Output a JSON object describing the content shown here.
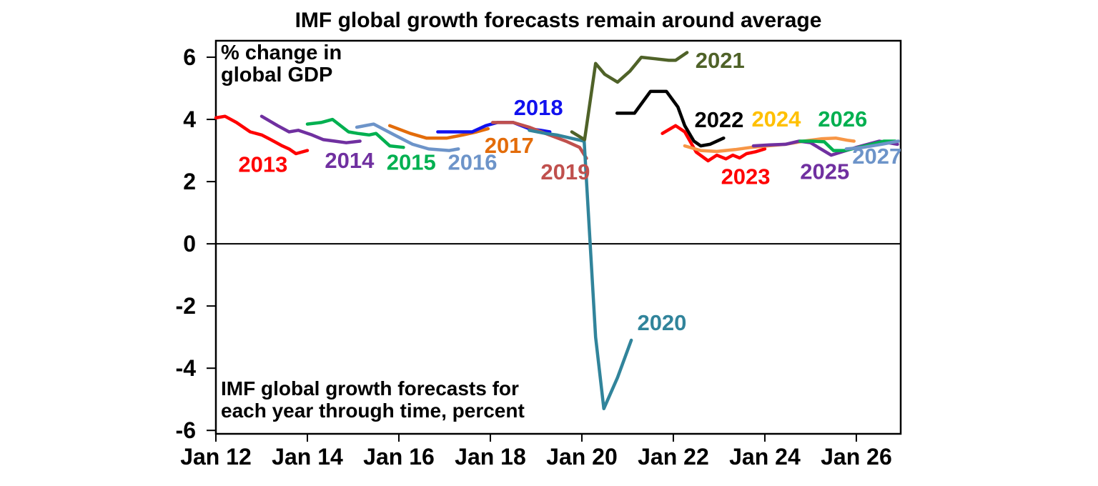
{
  "page": {
    "background": "#ffffff",
    "axis_color": "#000000"
  },
  "chart_data": {
    "type": "line",
    "title": "IMF global growth forecasts remain around average",
    "unit_note": [
      "% change in",
      "global GDP"
    ],
    "footnote": [
      "IMF global growth forecasts for",
      "each year through time, percent"
    ],
    "x_axis": {
      "range": [
        2012,
        2026.97
      ],
      "grid": false,
      "ticks": [
        {
          "t": 2012,
          "label": "Jan 12"
        },
        {
          "t": 2014,
          "label": "Jan 14"
        },
        {
          "t": 2016,
          "label": "Jan 16"
        },
        {
          "t": 2018,
          "label": "Jan 18"
        },
        {
          "t": 2020,
          "label": "Jan 20"
        },
        {
          "t": 2022,
          "label": "Jan 22"
        },
        {
          "t": 2024,
          "label": "Jan 24"
        },
        {
          "t": 2026,
          "label": "Jan 26"
        }
      ]
    },
    "y_axis": {
      "range": [
        -6.11,
        6.53
      ],
      "grid": false,
      "zero_line": true,
      "ticks": [
        {
          "v": 6,
          "label": "6"
        },
        {
          "v": 4,
          "label": "4"
        },
        {
          "v": 2,
          "label": "2"
        },
        {
          "v": 0,
          "label": "0"
        },
        {
          "v": -2,
          "label": "-2"
        },
        {
          "v": -4,
          "label": "-4"
        },
        {
          "v": -6,
          "label": "-6"
        }
      ]
    },
    "legend_position": "inline-labels",
    "series": [
      {
        "name": "2013",
        "color": "#FF0000",
        "label": {
          "text": "2013",
          "t": 2013.03,
          "v": 2.57,
          "color": "#FF0000"
        },
        "points": [
          [
            2012.0,
            4.05
          ],
          [
            2012.2,
            4.1
          ],
          [
            2012.45,
            3.9
          ],
          [
            2012.75,
            3.6
          ],
          [
            2013.0,
            3.5
          ],
          [
            2013.2,
            3.35
          ],
          [
            2013.45,
            3.15
          ],
          [
            2013.6,
            3.05
          ],
          [
            2013.75,
            2.9
          ],
          [
            2014.0,
            3.0
          ]
        ]
      },
      {
        "name": "2014",
        "color": "#7030A0",
        "label": {
          "text": "2014",
          "t": 2014.92,
          "v": 2.69,
          "color": "#7030A0"
        },
        "points": [
          [
            2013.0,
            4.1
          ],
          [
            2013.35,
            3.8
          ],
          [
            2013.6,
            3.6
          ],
          [
            2013.8,
            3.65
          ],
          [
            2014.1,
            3.5
          ],
          [
            2014.35,
            3.35
          ],
          [
            2014.6,
            3.3
          ],
          [
            2014.85,
            3.25
          ],
          [
            2015.15,
            3.3
          ]
        ]
      },
      {
        "name": "2015",
        "color": "#00B050",
        "label": {
          "text": "2015",
          "t": 2016.27,
          "v": 2.64,
          "color": "#00B050"
        },
        "points": [
          [
            2014.0,
            3.85
          ],
          [
            2014.3,
            3.9
          ],
          [
            2014.55,
            4.0
          ],
          [
            2014.9,
            3.6
          ],
          [
            2015.1,
            3.55
          ],
          [
            2015.35,
            3.5
          ],
          [
            2015.5,
            3.55
          ],
          [
            2015.8,
            3.15
          ],
          [
            2016.1,
            3.1
          ]
        ]
      },
      {
        "name": "2016",
        "color": "#6D94C9",
        "label": {
          "text": "2016",
          "t": 2017.61,
          "v": 2.64,
          "color": "#6D94C9"
        },
        "points": [
          [
            2015.08,
            3.75
          ],
          [
            2015.45,
            3.85
          ],
          [
            2015.9,
            3.5
          ],
          [
            2016.3,
            3.2
          ],
          [
            2016.65,
            3.05
          ],
          [
            2017.1,
            3.0
          ],
          [
            2017.3,
            3.05
          ]
        ]
      },
      {
        "name": "2017",
        "color": "#E36C0A",
        "label": {
          "text": "2017",
          "t": 2018.41,
          "v": 3.17,
          "color": "#E36C0A"
        },
        "points": [
          [
            2015.8,
            3.8
          ],
          [
            2016.25,
            3.55
          ],
          [
            2016.6,
            3.4
          ],
          [
            2017.05,
            3.4
          ],
          [
            2017.4,
            3.5
          ],
          [
            2017.7,
            3.6
          ],
          [
            2017.95,
            3.7
          ]
        ]
      },
      {
        "name": "2018",
        "color": "#1111EE",
        "label": {
          "text": "2018",
          "t": 2019.05,
          "v": 4.39,
          "color": "#1111EE"
        },
        "points": [
          [
            2016.85,
            3.6
          ],
          [
            2017.3,
            3.6
          ],
          [
            2017.6,
            3.6
          ],
          [
            2017.9,
            3.8
          ],
          [
            2018.15,
            3.9
          ],
          [
            2018.5,
            3.9
          ],
          [
            2018.85,
            3.7
          ],
          [
            2019.1,
            3.65
          ],
          [
            2019.3,
            3.6
          ]
        ]
      },
      {
        "name": "2019",
        "color": "#C0504D",
        "label": {
          "text": "2019",
          "t": 2019.64,
          "v": 2.32,
          "color": "#C0504D"
        },
        "points": [
          [
            2018.05,
            3.9
          ],
          [
            2018.5,
            3.9
          ],
          [
            2018.85,
            3.75
          ],
          [
            2019.2,
            3.55
          ],
          [
            2019.65,
            3.3
          ],
          [
            2019.95,
            3.1
          ],
          [
            2020.1,
            2.75
          ]
        ]
      },
      {
        "name": "2020",
        "color": "#31849B",
        "label": {
          "text": "2020",
          "t": 2021.75,
          "v": -2.53,
          "color": "#31849B"
        },
        "points": [
          [
            2018.85,
            3.65
          ],
          [
            2019.2,
            3.55
          ],
          [
            2019.45,
            3.5
          ],
          [
            2019.75,
            3.4
          ],
          [
            2020.05,
            3.3
          ],
          [
            2020.3,
            -3.0
          ],
          [
            2020.48,
            -5.3
          ],
          [
            2020.78,
            -4.3
          ],
          [
            2021.08,
            -3.1
          ]
        ]
      },
      {
        "name": "2021",
        "color": "#4F6228",
        "label": {
          "text": "2021",
          "t": 2023.02,
          "v": 5.91,
          "color": "#4F6228"
        },
        "points": [
          [
            2019.78,
            3.6
          ],
          [
            2020.06,
            3.35
          ],
          [
            2020.3,
            5.8
          ],
          [
            2020.5,
            5.45
          ],
          [
            2020.78,
            5.2
          ],
          [
            2021.05,
            5.55
          ],
          [
            2021.3,
            6.0
          ],
          [
            2021.6,
            5.95
          ],
          [
            2021.9,
            5.9
          ],
          [
            2022.05,
            5.9
          ],
          [
            2022.3,
            6.15
          ]
        ]
      },
      {
        "name": "2022",
        "color": "#000000",
        "label": {
          "text": "2022",
          "t": 2023.0,
          "v": 4.0,
          "color": "#000000"
        },
        "points": [
          [
            2020.77,
            4.2
          ],
          [
            2021.15,
            4.2
          ],
          [
            2021.5,
            4.9
          ],
          [
            2021.85,
            4.9
          ],
          [
            2022.1,
            4.4
          ],
          [
            2022.25,
            3.8
          ],
          [
            2022.45,
            3.3
          ],
          [
            2022.6,
            3.15
          ],
          [
            2022.8,
            3.2
          ],
          [
            2023.1,
            3.4
          ]
        ]
      },
      {
        "name": "2023",
        "color": "#FF0000",
        "label": {
          "text": "2023",
          "t": 2023.58,
          "v": 2.18,
          "color": "#FF0000"
        },
        "points": [
          [
            2021.76,
            3.55
          ],
          [
            2022.05,
            3.8
          ],
          [
            2022.25,
            3.6
          ],
          [
            2022.5,
            2.95
          ],
          [
            2022.76,
            2.67
          ],
          [
            2022.95,
            2.85
          ],
          [
            2023.15,
            2.73
          ],
          [
            2023.3,
            2.85
          ],
          [
            2023.45,
            2.76
          ],
          [
            2023.6,
            2.9
          ],
          [
            2023.8,
            2.96
          ],
          [
            2024.0,
            3.05
          ]
        ]
      },
      {
        "name": "2024",
        "color": "#F79646",
        "label": {
          "text": "2024",
          "t": 2024.25,
          "v": 4.02,
          "color": "#FFC000"
        },
        "points": [
          [
            2022.25,
            3.15
          ],
          [
            2022.6,
            3.0
          ],
          [
            2022.95,
            2.97
          ],
          [
            2023.35,
            3.03
          ],
          [
            2023.7,
            3.1
          ],
          [
            2024.05,
            3.15
          ],
          [
            2024.45,
            3.2
          ],
          [
            2024.85,
            3.3
          ],
          [
            2025.25,
            3.38
          ],
          [
            2025.55,
            3.4
          ],
          [
            2025.8,
            3.33
          ],
          [
            2025.95,
            3.3
          ]
        ]
      },
      {
        "name": "2025",
        "color": "#7030A0",
        "label": {
          "text": "2025",
          "t": 2025.31,
          "v": 2.34,
          "color": "#7030A0"
        },
        "points": [
          [
            2023.75,
            3.15
          ],
          [
            2024.1,
            3.18
          ],
          [
            2024.45,
            3.2
          ],
          [
            2024.75,
            3.3
          ],
          [
            2025.0,
            3.25
          ],
          [
            2025.45,
            2.85
          ],
          [
            2026.0,
            3.1
          ],
          [
            2026.5,
            3.3
          ],
          [
            2026.9,
            3.2
          ]
        ]
      },
      {
        "name": "2026",
        "color": "#00B050",
        "label": {
          "text": "2026",
          "t": 2025.7,
          "v": 4.02,
          "color": "#00B050"
        },
        "points": [
          [
            2024.77,
            3.3
          ],
          [
            2025.05,
            3.3
          ],
          [
            2025.3,
            3.28
          ],
          [
            2025.5,
            3.0
          ],
          [
            2025.75,
            3.0
          ],
          [
            2026.2,
            3.15
          ],
          [
            2026.6,
            3.3
          ],
          [
            2026.85,
            3.3
          ]
        ]
      },
      {
        "name": "2027",
        "color": "#6D94C9",
        "label": {
          "text": "2027",
          "t": 2026.45,
          "v": 2.83,
          "color": "#6D94C9"
        },
        "points": [
          [
            2025.78,
            3.05
          ],
          [
            2026.15,
            3.1
          ],
          [
            2026.55,
            3.2
          ],
          [
            2026.92,
            3.3
          ]
        ]
      }
    ]
  }
}
